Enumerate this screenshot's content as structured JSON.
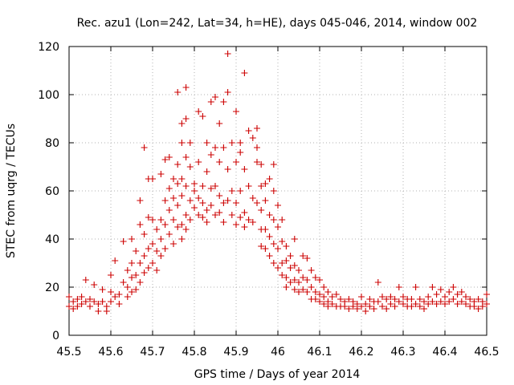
{
  "chart_data": {
    "type": "scatter",
    "title": "Rec. azu1 (Lon=242, Lat=34, h=HE), days 045-046, 2014, window 002",
    "xlabel": "GPS time / Days of year 2014",
    "ylabel": "STEC from uqrg / TECUs",
    "xlim": [
      45.5,
      46.5
    ],
    "ylim": [
      0,
      120
    ],
    "xticks": [
      45.5,
      45.6,
      45.7,
      45.8,
      45.9,
      46,
      46.1,
      46.2,
      46.3,
      46.4,
      46.5
    ],
    "xtick_labels": [
      "45.5",
      "45.6",
      "45.7",
      "45.8",
      "45.9",
      "46",
      "46.1",
      "46.2",
      "46.3",
      "46.4",
      "46.5"
    ],
    "yticks": [
      0,
      20,
      40,
      60,
      80,
      100,
      120
    ],
    "ytick_labels": [
      "0",
      "20",
      "40",
      "60",
      "80",
      "100",
      "120"
    ],
    "grid": true,
    "marker": "+",
    "color": "#cc0000",
    "series": [
      {
        "name": "STEC",
        "points": [
          [
            45.5,
            16
          ],
          [
            45.5,
            12
          ],
          [
            45.51,
            14
          ],
          [
            45.51,
            11
          ],
          [
            45.52,
            15
          ],
          [
            45.52,
            12
          ],
          [
            45.53,
            13
          ],
          [
            45.53,
            16
          ],
          [
            45.54,
            23
          ],
          [
            45.54,
            14
          ],
          [
            45.55,
            12
          ],
          [
            45.55,
            15
          ],
          [
            45.56,
            21
          ],
          [
            45.56,
            14
          ],
          [
            45.57,
            13
          ],
          [
            45.57,
            10
          ],
          [
            45.58,
            19
          ],
          [
            45.58,
            14
          ],
          [
            45.59,
            12
          ],
          [
            45.59,
            10
          ],
          [
            45.6,
            18
          ],
          [
            45.6,
            14
          ],
          [
            45.6,
            25
          ],
          [
            45.61,
            16
          ],
          [
            45.61,
            31
          ],
          [
            45.62,
            17
          ],
          [
            45.62,
            13
          ],
          [
            45.63,
            22
          ],
          [
            45.63,
            39
          ],
          [
            45.64,
            27
          ],
          [
            45.64,
            20
          ],
          [
            45.64,
            16
          ],
          [
            45.65,
            30
          ],
          [
            45.65,
            24
          ],
          [
            45.65,
            18
          ],
          [
            45.65,
            40
          ],
          [
            45.66,
            35
          ],
          [
            45.66,
            25
          ],
          [
            45.66,
            19
          ],
          [
            45.67,
            46
          ],
          [
            45.67,
            56
          ],
          [
            45.67,
            30
          ],
          [
            45.67,
            22
          ],
          [
            45.68,
            78
          ],
          [
            45.68,
            42
          ],
          [
            45.68,
            33
          ],
          [
            45.68,
            26
          ],
          [
            45.69,
            49
          ],
          [
            45.69,
            65
          ],
          [
            45.69,
            36
          ],
          [
            45.69,
            28
          ],
          [
            45.7,
            48
          ],
          [
            45.7,
            65
          ],
          [
            45.7,
            38
          ],
          [
            45.7,
            30
          ],
          [
            45.71,
            44
          ],
          [
            45.71,
            35
          ],
          [
            45.71,
            27
          ],
          [
            45.72,
            67
          ],
          [
            45.72,
            48
          ],
          [
            45.72,
            40
          ],
          [
            45.72,
            33
          ],
          [
            45.73,
            73
          ],
          [
            45.73,
            56
          ],
          [
            45.73,
            46
          ],
          [
            45.73,
            36
          ],
          [
            45.74,
            74
          ],
          [
            45.74,
            61
          ],
          [
            45.74,
            52
          ],
          [
            45.74,
            42
          ],
          [
            45.75,
            65
          ],
          [
            45.75,
            57
          ],
          [
            45.75,
            48
          ],
          [
            45.75,
            38
          ],
          [
            45.76,
            101
          ],
          [
            45.76,
            71
          ],
          [
            45.76,
            63
          ],
          [
            45.76,
            54
          ],
          [
            45.76,
            45
          ],
          [
            45.77,
            88
          ],
          [
            45.77,
            80
          ],
          [
            45.77,
            65
          ],
          [
            45.77,
            58
          ],
          [
            45.77,
            46
          ],
          [
            45.77,
            40
          ],
          [
            45.78,
            103
          ],
          [
            45.78,
            90
          ],
          [
            45.78,
            74
          ],
          [
            45.78,
            62
          ],
          [
            45.78,
            50
          ],
          [
            45.78,
            44
          ],
          [
            45.79,
            80
          ],
          [
            45.79,
            70
          ],
          [
            45.79,
            56
          ],
          [
            45.79,
            48
          ],
          [
            45.8,
            63
          ],
          [
            45.8,
            60
          ],
          [
            45.8,
            53
          ],
          [
            45.81,
            93
          ],
          [
            45.81,
            72
          ],
          [
            45.81,
            57
          ],
          [
            45.81,
            50
          ],
          [
            45.82,
            91
          ],
          [
            45.82,
            62
          ],
          [
            45.82,
            55
          ],
          [
            45.82,
            49
          ],
          [
            45.83,
            80
          ],
          [
            45.83,
            68
          ],
          [
            45.83,
            52
          ],
          [
            45.83,
            47
          ],
          [
            45.84,
            97
          ],
          [
            45.84,
            75
          ],
          [
            45.84,
            61
          ],
          [
            45.84,
            54
          ],
          [
            45.85,
            99
          ],
          [
            45.85,
            78
          ],
          [
            45.85,
            62
          ],
          [
            45.85,
            50
          ],
          [
            45.86,
            88
          ],
          [
            45.86,
            72
          ],
          [
            45.86,
            58
          ],
          [
            45.86,
            51
          ],
          [
            45.87,
            97
          ],
          [
            45.87,
            78
          ],
          [
            45.87,
            55
          ],
          [
            45.87,
            47
          ],
          [
            45.88,
            117
          ],
          [
            45.88,
            101
          ],
          [
            45.88,
            69
          ],
          [
            45.88,
            56
          ],
          [
            45.89,
            80
          ],
          [
            45.89,
            60
          ],
          [
            45.89,
            50
          ],
          [
            45.9,
            93
          ],
          [
            45.9,
            72
          ],
          [
            45.9,
            55
          ],
          [
            45.9,
            46
          ],
          [
            45.91,
            80
          ],
          [
            45.91,
            76
          ],
          [
            45.91,
            60
          ],
          [
            45.91,
            49
          ],
          [
            45.92,
            109
          ],
          [
            45.92,
            69
          ],
          [
            45.92,
            51
          ],
          [
            45.92,
            45
          ],
          [
            45.93,
            85
          ],
          [
            45.93,
            62
          ],
          [
            45.93,
            48
          ],
          [
            45.94,
            82
          ],
          [
            45.94,
            57
          ],
          [
            45.94,
            47
          ],
          [
            45.95,
            86
          ],
          [
            45.95,
            78
          ],
          [
            45.95,
            72
          ],
          [
            45.95,
            55
          ],
          [
            45.96,
            71
          ],
          [
            45.96,
            62
          ],
          [
            45.96,
            52
          ],
          [
            45.96,
            44
          ],
          [
            45.96,
            37
          ],
          [
            45.97,
            63
          ],
          [
            45.97,
            56
          ],
          [
            45.97,
            44
          ],
          [
            45.97,
            36
          ],
          [
            45.98,
            65
          ],
          [
            45.98,
            50
          ],
          [
            45.98,
            41
          ],
          [
            45.98,
            33
          ],
          [
            45.99,
            71
          ],
          [
            45.99,
            60
          ],
          [
            45.99,
            48
          ],
          [
            45.99,
            38
          ],
          [
            45.99,
            30
          ],
          [
            46.0,
            54
          ],
          [
            46.0,
            45
          ],
          [
            46.0,
            36
          ],
          [
            46.0,
            28
          ],
          [
            46.01,
            48
          ],
          [
            46.01,
            39
          ],
          [
            46.01,
            30
          ],
          [
            46.01,
            25
          ],
          [
            46.02,
            37
          ],
          [
            46.02,
            31
          ],
          [
            46.02,
            24
          ],
          [
            46.02,
            20
          ],
          [
            46.03,
            33
          ],
          [
            46.03,
            28
          ],
          [
            46.03,
            22
          ],
          [
            46.04,
            40
          ],
          [
            46.04,
            29
          ],
          [
            46.04,
            23
          ],
          [
            46.04,
            19
          ],
          [
            46.05,
            27
          ],
          [
            46.05,
            22
          ],
          [
            46.05,
            18
          ],
          [
            46.06,
            33
          ],
          [
            46.06,
            24
          ],
          [
            46.06,
            19
          ],
          [
            46.07,
            32
          ],
          [
            46.07,
            23
          ],
          [
            46.07,
            18
          ],
          [
            46.08,
            27
          ],
          [
            46.08,
            20
          ],
          [
            46.08,
            15
          ],
          [
            46.09,
            24
          ],
          [
            46.09,
            18
          ],
          [
            46.09,
            15
          ],
          [
            46.1,
            23
          ],
          [
            46.1,
            17
          ],
          [
            46.1,
            14
          ],
          [
            46.11,
            20
          ],
          [
            46.11,
            16
          ],
          [
            46.11,
            13
          ],
          [
            46.12,
            18
          ],
          [
            46.12,
            14
          ],
          [
            46.12,
            12
          ],
          [
            46.13,
            16
          ],
          [
            46.13,
            13
          ],
          [
            46.14,
            17
          ],
          [
            46.14,
            12
          ],
          [
            46.15,
            15
          ],
          [
            46.15,
            12
          ],
          [
            46.16,
            14
          ],
          [
            46.16,
            12
          ],
          [
            46.17,
            15
          ],
          [
            46.17,
            11
          ],
          [
            46.18,
            14
          ],
          [
            46.18,
            12
          ],
          [
            46.19,
            13
          ],
          [
            46.19,
            11
          ],
          [
            46.2,
            16
          ],
          [
            46.2,
            12
          ],
          [
            46.21,
            13
          ],
          [
            46.21,
            10
          ],
          [
            46.22,
            15
          ],
          [
            46.22,
            12
          ],
          [
            46.23,
            14
          ],
          [
            46.23,
            11
          ],
          [
            46.24,
            22
          ],
          [
            46.24,
            14
          ],
          [
            46.25,
            16
          ],
          [
            46.25,
            12
          ],
          [
            46.26,
            15
          ],
          [
            46.26,
            11
          ],
          [
            46.27,
            16
          ],
          [
            46.27,
            13
          ],
          [
            46.28,
            15
          ],
          [
            46.28,
            12
          ],
          [
            46.29,
            20
          ],
          [
            46.29,
            14
          ],
          [
            46.3,
            16
          ],
          [
            46.3,
            13
          ],
          [
            46.31,
            15
          ],
          [
            46.31,
            12
          ],
          [
            46.32,
            15
          ],
          [
            46.32,
            12
          ],
          [
            46.33,
            20
          ],
          [
            46.33,
            13
          ],
          [
            46.34,
            15
          ],
          [
            46.34,
            12
          ],
          [
            46.35,
            14
          ],
          [
            46.35,
            11
          ],
          [
            46.36,
            16
          ],
          [
            46.36,
            13
          ],
          [
            46.37,
            20
          ],
          [
            46.37,
            14
          ],
          [
            46.38,
            17
          ],
          [
            46.38,
            13
          ],
          [
            46.39,
            19
          ],
          [
            46.39,
            14
          ],
          [
            46.4,
            16
          ],
          [
            46.4,
            13
          ],
          [
            46.41,
            18
          ],
          [
            46.41,
            14
          ],
          [
            46.42,
            20
          ],
          [
            46.42,
            15
          ],
          [
            46.43,
            17
          ],
          [
            46.43,
            13
          ],
          [
            46.44,
            18
          ],
          [
            46.44,
            14
          ],
          [
            46.45,
            16
          ],
          [
            46.45,
            13
          ],
          [
            46.46,
            15
          ],
          [
            46.46,
            12
          ],
          [
            46.47,
            14
          ],
          [
            46.47,
            12
          ],
          [
            46.48,
            15
          ],
          [
            46.48,
            11
          ],
          [
            46.49,
            14
          ],
          [
            46.49,
            12
          ],
          [
            46.5,
            17
          ],
          [
            46.5,
            13
          ]
        ]
      }
    ]
  }
}
